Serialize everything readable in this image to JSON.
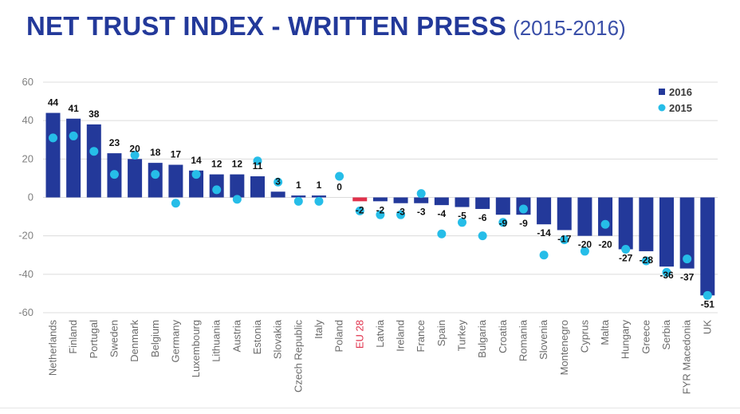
{
  "title": "NET TRUST INDEX - WRITTEN PRESS",
  "subtitle": "(2015-2016)",
  "chart_data": {
    "type": "bar",
    "categories": [
      "Netherlands",
      "Finland",
      "Portugal",
      "Sweden",
      "Denmark",
      "Belgium",
      "Germany",
      "Luxembourg",
      "Lithuania",
      "Austria",
      "Estonia",
      "Slovakia",
      "Czech Republic",
      "Italy",
      "Poland",
      "EU 28",
      "Latvia",
      "Ireland",
      "France",
      "Spain",
      "Turkey",
      "Bulgaria",
      "Croatia",
      "Romania",
      "Slovenia",
      "Montenegro",
      "Cyprus",
      "Malta",
      "Hungary",
      "Greece",
      "Serbia",
      "FYR Macedonia",
      "UK"
    ],
    "series": [
      {
        "name": "2016",
        "type": "bar",
        "color": "#23399a",
        "values": [
          44,
          41,
          38,
          23,
          20,
          18,
          17,
          14,
          12,
          12,
          11,
          3,
          1,
          1,
          0,
          -2,
          -2,
          -3,
          -3,
          -4,
          -5,
          -6,
          -9,
          -9,
          -14,
          -17,
          -20,
          -20,
          -27,
          -28,
          -36,
          -37,
          -51
        ]
      },
      {
        "name": "2015",
        "type": "scatter",
        "color": "#26bde8",
        "values": [
          31,
          32,
          24,
          12,
          22,
          12,
          -3,
          12,
          4,
          -1,
          19,
          8,
          -2,
          -2,
          11,
          -7,
          -9,
          -9,
          2,
          -19,
          -13,
          -20,
          -13,
          -6,
          -30,
          -22,
          -28,
          -14,
          -27,
          -33,
          -39,
          -32,
          -51
        ]
      }
    ],
    "data_labels": [
      "44",
      "41",
      "38",
      "23",
      "20",
      "18",
      "17",
      "14",
      "12",
      "12",
      "11",
      "3",
      "1",
      "1",
      "0",
      "-2",
      "-2",
      "-3",
      "-3",
      "-4",
      "-5",
      "-6",
      "-9",
      "-9",
      "-14",
      "-17",
      "-20",
      "-20",
      "-27",
      "-28",
      "-36",
      "-37",
      "-51"
    ],
    "highlight_category": "EU 28",
    "highlight_color": "#e0314b",
    "ylim": [
      -60,
      60
    ],
    "yticks": [
      60,
      40,
      20,
      0,
      -20,
      -40,
      -60
    ],
    "grid": true,
    "legend_position": "top-right",
    "xlabel": "",
    "ylabel": ""
  }
}
